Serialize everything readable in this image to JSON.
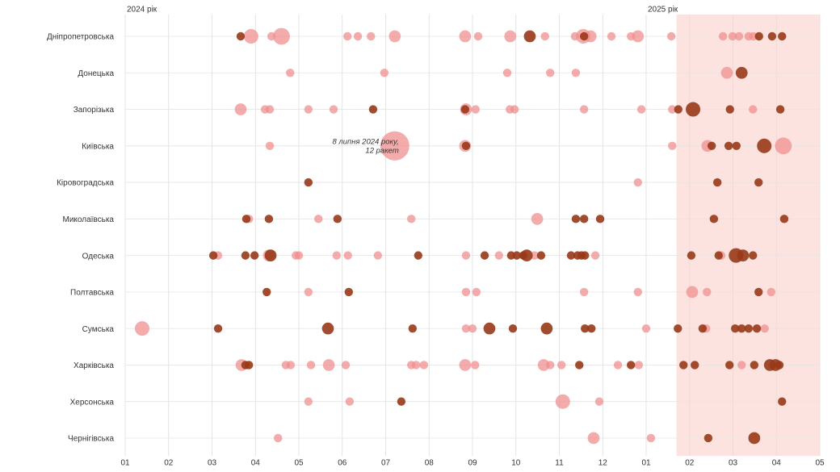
{
  "chart_data": {
    "type": "bubble",
    "xlim": [
      0,
      16
    ],
    "xticks": [
      {
        "value": 0,
        "label": "01"
      },
      {
        "value": 1,
        "label": "02"
      },
      {
        "value": 2,
        "label": "03"
      },
      {
        "value": 3,
        "label": "04"
      },
      {
        "value": 4,
        "label": "05"
      },
      {
        "value": 5,
        "label": "06"
      },
      {
        "value": 6,
        "label": "07"
      },
      {
        "value": 7,
        "label": "08"
      },
      {
        "value": 8,
        "label": "09"
      },
      {
        "value": 9,
        "label": "10"
      },
      {
        "value": 10,
        "label": "11"
      },
      {
        "value": 11,
        "label": "12"
      },
      {
        "value": 12,
        "label": "01"
      },
      {
        "value": 13,
        "label": "02"
      },
      {
        "value": 14,
        "label": "03"
      },
      {
        "value": 15,
        "label": "04"
      },
      {
        "value": 16,
        "label": "05"
      }
    ],
    "year_labels": [
      {
        "value": 0,
        "label": "2024 рік"
      },
      {
        "value": 12,
        "label": "2025 рік"
      }
    ],
    "highlight": [
      12.7,
      16
    ],
    "highlight_color": "#fde3e0",
    "grid": true,
    "colors": {
      "light": "#ef8f8f",
      "dark": "#983818"
    },
    "annotation": {
      "x": 6.21,
      "row": 3,
      "lines": [
        "8 липня 2024 року,",
        "12 ракет"
      ]
    },
    "series": [
      {
        "name": "Дніпропетровська",
        "light": {
          "x": [
            2.9,
            3.37,
            3.6,
            5.12,
            5.36,
            5.66,
            6.21,
            7.83,
            8.13,
            8.87,
            9.67,
            10.36,
            10.55,
            10.72,
            11.2,
            11.65,
            11.81,
            12.58,
            13.77,
            13.99,
            14.14,
            14.36,
            14.47
          ],
          "sizes": [
            3,
            1,
            4,
            1,
            1,
            1,
            2,
            2,
            1,
            2,
            1,
            1,
            3,
            2,
            1,
            1,
            2,
            1,
            1,
            1,
            1,
            1,
            1
          ]
        },
        "dark": {
          "x": [
            2.66,
            9.32,
            10.57,
            14.6,
            14.9,
            15.13
          ],
          "sizes": [
            1,
            2,
            1,
            1,
            1,
            1
          ]
        }
      },
      {
        "name": "Донецька",
        "light": {
          "x": [
            3.8,
            5.97,
            8.8,
            9.79,
            10.38,
            13.86
          ],
          "sizes": [
            1,
            1,
            1,
            1,
            1,
            2
          ]
        },
        "dark": {
          "x": [
            14.2
          ],
          "sizes": [
            2
          ]
        }
      },
      {
        "name": "Запорізька",
        "light": {
          "x": [
            2.66,
            3.22,
            3.33,
            4.22,
            4.8,
            7.85,
            8.07,
            8.86,
            8.97,
            10.57,
            11.89,
            12.6,
            14.46
          ],
          "sizes": [
            2,
            1,
            1,
            1,
            1,
            2,
            1,
            1,
            1,
            1,
            1,
            1,
            1
          ]
        },
        "dark": {
          "x": [
            5.71,
            7.83,
            12.74,
            13.08,
            13.93,
            15.09
          ],
          "sizes": [
            1,
            1,
            1,
            3,
            1,
            1
          ]
        }
      },
      {
        "name": "Київська",
        "light": {
          "x": [
            3.33,
            6.21,
            7.83,
            12.6,
            13.41,
            15.16
          ],
          "sizes": [
            1,
            12,
            2,
            1,
            2,
            4
          ]
        },
        "dark": {
          "x": [
            7.85,
            13.51,
            13.9,
            14.08,
            14.72
          ],
          "sizes": [
            1,
            1,
            1,
            1,
            3
          ]
        }
      },
      {
        "name": "Кіровоградська",
        "light": {
          "x": [
            11.81
          ],
          "sizes": [
            1
          ]
        },
        "dark": {
          "x": [
            4.22,
            13.64,
            14.59
          ],
          "sizes": [
            1,
            1,
            1
          ]
        }
      },
      {
        "name": "Миколаївська",
        "light": {
          "x": [
            2.85,
            4.45,
            6.59,
            9.49
          ],
          "sizes": [
            1,
            1,
            1,
            2
          ]
        },
        "dark": {
          "x": [
            2.79,
            3.31,
            4.89,
            10.38,
            10.57,
            10.94,
            13.56,
            15.18
          ],
          "sizes": [
            1,
            1,
            1,
            1,
            1,
            1,
            1,
            1
          ]
        }
      },
      {
        "name": "Одеська",
        "light": {
          "x": [
            2.14,
            3.31,
            3.93,
            4.0,
            4.87,
            5.13,
            5.82,
            7.85,
            8.61,
            9.43,
            10.83,
            13.73
          ],
          "sizes": [
            1,
            2,
            1,
            1,
            1,
            1,
            1,
            1,
            1,
            1,
            1,
            1
          ]
        },
        "dark": {
          "x": [
            2.03,
            2.77,
            2.98,
            3.35,
            6.75,
            8.28,
            8.89,
            9.02,
            9.17,
            9.25,
            9.58,
            10.27,
            10.42,
            10.51,
            10.59,
            13.04,
            13.67,
            14.07,
            14.23,
            14.46
          ],
          "sizes": [
            1,
            1,
            1,
            2,
            1,
            1,
            1,
            1,
            1,
            2,
            1,
            1,
            1,
            1,
            1,
            1,
            1,
            3,
            2,
            1
          ]
        }
      },
      {
        "name": "Полтавська",
        "light": {
          "x": [
            4.22,
            7.85,
            8.09,
            10.57,
            11.81,
            13.06,
            13.4,
            14.88
          ],
          "sizes": [
            1,
            1,
            1,
            1,
            1,
            2,
            1,
            1
          ]
        },
        "dark": {
          "x": [
            3.26,
            5.15,
            14.59
          ],
          "sizes": [
            1,
            1,
            1
          ]
        }
      },
      {
        "name": "Сумська",
        "light": {
          "x": [
            0.39,
            7.85,
            8.0,
            12.0,
            13.38,
            14.73
          ],
          "sizes": [
            3,
            1,
            1,
            1,
            1,
            1
          ]
        },
        "dark": {
          "x": [
            2.14,
            4.67,
            6.62,
            8.39,
            8.93,
            9.71,
            10.59,
            10.74,
            12.73,
            13.3,
            14.05,
            14.2,
            14.36,
            14.55
          ],
          "sizes": [
            1,
            2,
            1,
            2,
            1,
            2,
            1,
            1,
            1,
            1,
            1,
            1,
            1,
            1
          ]
        }
      },
      {
        "name": "Харківська",
        "light": {
          "x": [
            2.68,
            3.7,
            3.81,
            4.28,
            4.69,
            5.08,
            6.59,
            6.7,
            6.88,
            7.83,
            8.06,
            9.64,
            9.79,
            10.05,
            11.35,
            11.83,
            14.2
          ],
          "sizes": [
            2,
            1,
            1,
            1,
            2,
            1,
            1,
            1,
            1,
            2,
            1,
            2,
            1,
            1,
            1,
            1,
            1
          ]
        },
        "dark": {
          "x": [
            2.77,
            2.85,
            10.46,
            11.65,
            12.86,
            13.12,
            13.92,
            14.49,
            14.85,
            14.98,
            15.07
          ],
          "sizes": [
            1,
            1,
            1,
            1,
            1,
            1,
            1,
            1,
            2,
            2,
            1
          ]
        }
      },
      {
        "name": "Херсонська",
        "light": {
          "x": [
            4.22,
            5.17,
            10.08,
            10.92
          ],
          "sizes": [
            1,
            1,
            3,
            1
          ]
        },
        "dark": {
          "x": [
            6.36,
            15.13
          ],
          "sizes": [
            1,
            1
          ]
        }
      },
      {
        "name": "Чернігівська",
        "light": {
          "x": [
            3.52,
            10.79,
            12.11
          ],
          "sizes": [
            1,
            2,
            1
          ]
        },
        "dark": {
          "x": [
            13.43,
            14.49
          ],
          "sizes": [
            1,
            2
          ]
        }
      }
    ]
  }
}
